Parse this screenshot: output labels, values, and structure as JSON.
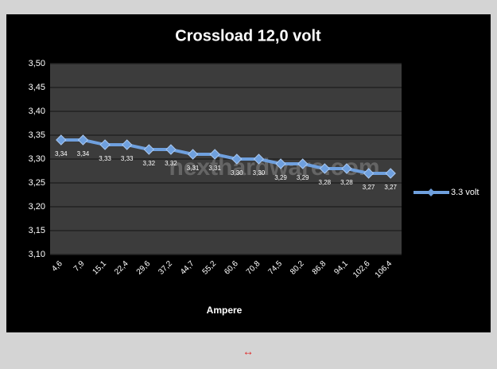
{
  "chart_data": {
    "type": "line",
    "title": "Crossload 12,0 volt",
    "x_label": "Ampere",
    "categories": [
      "4,6",
      "7,9",
      "15,1",
      "22,4",
      "29,6",
      "37,2",
      "44,7",
      "55,2",
      "60,6",
      "70,8",
      "74,5",
      "80,2",
      "86,8",
      "94,1",
      "102,6",
      "106,4"
    ],
    "series": [
      {
        "name": "3.3 volt",
        "color": "#6fa0de",
        "values": [
          3.34,
          3.34,
          3.33,
          3.33,
          3.32,
          3.32,
          3.31,
          3.31,
          3.3,
          3.3,
          3.29,
          3.29,
          3.28,
          3.28,
          3.27,
          3.27
        ],
        "value_labels": [
          "3,34",
          "3,34",
          "3,33",
          "3,33",
          "3,32",
          "3,32",
          "3,31",
          "3,31",
          "3,30",
          "3,30",
          "3,29",
          "3,29",
          "3,28",
          "3,28",
          "3,27",
          "3,27"
        ]
      }
    ],
    "ylim": [
      3.1,
      3.5
    ],
    "yticks": [
      {
        "value": 3.1,
        "label": "3,10"
      },
      {
        "value": 3.15,
        "label": "3,15"
      },
      {
        "value": 3.2,
        "label": "3,20"
      },
      {
        "value": 3.25,
        "label": "3,25"
      },
      {
        "value": 3.3,
        "label": "3,30"
      },
      {
        "value": 3.35,
        "label": "3,35"
      },
      {
        "value": 3.4,
        "label": "3,40"
      },
      {
        "value": 3.45,
        "label": "3,45"
      },
      {
        "value": 3.5,
        "label": "3,50"
      }
    ],
    "grid": true,
    "legend": "right",
    "watermark": "nexthardware.com"
  },
  "expand_icon": "↔"
}
